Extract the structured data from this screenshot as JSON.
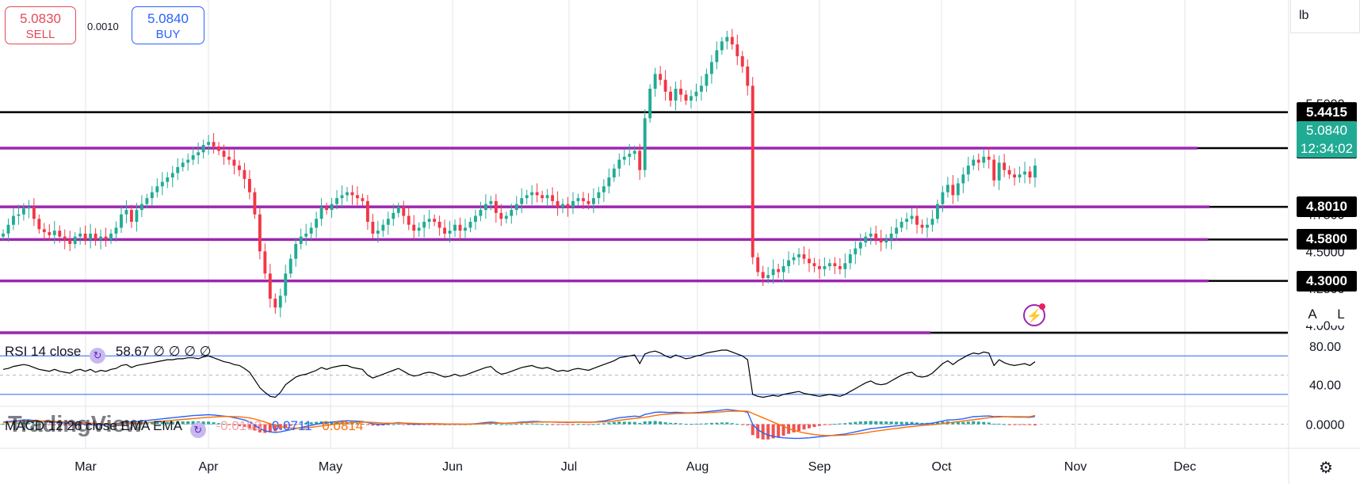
{
  "trade": {
    "sell_price": "5.0830",
    "sell_label": "SELL",
    "buy_price": "5.0840",
    "buy_label": "BUY",
    "spread": "0.0010"
  },
  "units_label": "lb",
  "buttons": {
    "auto": "A",
    "log": "L"
  },
  "logo": "TradingView",
  "icons": {
    "settings": "gear-icon",
    "flash": "lightning-icon",
    "indicator": "refresh-icon"
  },
  "chart_data": {
    "type": "candlestick",
    "x_axis": {
      "ticks": [
        "Mar",
        "Apr",
        "May",
        "Jun",
        "Jul",
        "Aug",
        "Sep",
        "Oct",
        "Nov",
        "Dec"
      ]
    },
    "y_axis": {
      "range": [
        3.95,
        6.2
      ],
      "ticks": [
        {
          "value": 5.5,
          "label": "5.5000"
        },
        {
          "value": 4.75,
          "label": "4.7500"
        },
        {
          "value": 4.5,
          "label": "4.5000"
        },
        {
          "value": 4.25,
          "label": "4.2500"
        },
        {
          "value": 4.0,
          "label": "4.0000"
        }
      ]
    },
    "current_price": "5.0840",
    "countdown": "12:34:02",
    "horizontal_levels": [
      {
        "value": 5.4415,
        "label": "5.4415",
        "color": "#000000"
      },
      {
        "value": 5.1985,
        "label": "5.1985",
        "color": "#9c27b0"
      },
      {
        "value": 4.801,
        "label": "4.8010",
        "color": "#9c27b0"
      },
      {
        "value": 4.58,
        "label": "4.5800",
        "color": "#9c27b0"
      },
      {
        "value": 4.3,
        "label": "4.3000",
        "color": "#9c27b0"
      },
      {
        "value": 3.95,
        "label": "",
        "color": "#9c27b0"
      }
    ],
    "colors": {
      "up": "#22ab94",
      "down": "#f23645",
      "rsi": "#000000",
      "macd": "#2962ff",
      "signal": "#ff6d00"
    },
    "candles_close": [
      4.62,
      4.68,
      4.74,
      4.75,
      4.79,
      4.8,
      4.72,
      4.65,
      4.63,
      4.61,
      4.64,
      4.6,
      4.58,
      4.55,
      4.6,
      4.62,
      4.58,
      4.62,
      4.58,
      4.6,
      4.58,
      4.62,
      4.66,
      4.75,
      4.78,
      4.7,
      4.78,
      4.82,
      4.86,
      4.9,
      4.94,
      4.97,
      5.0,
      5.03,
      5.07,
      5.1,
      5.12,
      5.15,
      5.17,
      5.22,
      5.24,
      5.21,
      5.18,
      5.14,
      5.12,
      5.08,
      5.05,
      4.99,
      4.9,
      4.75,
      4.5,
      4.35,
      4.18,
      4.12,
      4.2,
      4.35,
      4.45,
      4.55,
      4.6,
      4.62,
      4.66,
      4.72,
      4.8,
      4.78,
      4.82,
      4.86,
      4.88,
      4.9,
      4.88,
      4.86,
      4.84,
      4.7,
      4.62,
      4.64,
      4.68,
      4.72,
      4.76,
      4.8,
      4.74,
      4.68,
      4.64,
      4.66,
      4.7,
      4.72,
      4.7,
      4.66,
      4.62,
      4.64,
      4.68,
      4.64,
      4.66,
      4.7,
      4.74,
      4.78,
      4.82,
      4.84,
      4.76,
      4.72,
      4.74,
      4.78,
      4.82,
      4.86,
      4.88,
      4.9,
      4.88,
      4.86,
      4.88,
      4.84,
      4.8,
      4.82,
      4.8,
      4.84,
      4.86,
      4.84,
      4.82,
      4.86,
      4.9,
      4.94,
      5.0,
      5.06,
      5.12,
      5.14,
      5.16,
      5.18,
      5.05,
      5.4,
      5.6,
      5.7,
      5.66,
      5.58,
      5.52,
      5.6,
      5.56,
      5.52,
      5.55,
      5.58,
      5.62,
      5.7,
      5.78,
      5.86,
      5.92,
      5.95,
      5.9,
      5.82,
      5.75,
      5.62,
      4.46,
      4.36,
      4.32,
      4.34,
      4.38,
      4.36,
      4.4,
      4.44,
      4.46,
      4.48,
      4.45,
      4.42,
      4.4,
      4.38,
      4.4,
      4.42,
      4.4,
      4.38,
      4.42,
      4.48,
      4.52,
      4.56,
      4.6,
      4.62,
      4.58,
      4.56,
      4.58,
      4.62,
      4.66,
      4.7,
      4.72,
      4.74,
      4.68,
      4.66,
      4.68,
      4.72,
      4.82,
      4.9,
      4.95,
      4.88,
      4.96,
      5.02,
      5.08,
      5.12,
      5.1,
      5.14,
      5.12,
      4.98,
      5.1,
      5.05,
      5.02,
      5.0,
      5.02,
      5.04,
      5.0,
      5.08
    ],
    "rsi": {
      "label": "RSI 14 close",
      "value": "58.67",
      "na": [
        "∅",
        "∅",
        "∅",
        "∅"
      ],
      "ticks": [
        {
          "value": 80,
          "label": "80.00"
        },
        {
          "value": 40,
          "label": "40.00"
        }
      ],
      "bands": [
        70,
        50,
        30
      ],
      "range": [
        20,
        90
      ],
      "values": [
        56,
        57,
        59,
        60,
        61,
        60,
        58,
        56,
        55,
        54,
        56,
        54,
        53,
        52,
        55,
        56,
        54,
        56,
        53,
        55,
        54,
        56,
        57,
        60,
        61,
        58,
        60,
        61,
        62,
        63,
        64,
        65,
        66,
        66,
        67,
        67,
        68,
        68,
        67,
        69,
        70,
        68,
        66,
        64,
        63,
        61,
        60,
        57,
        53,
        45,
        37,
        32,
        28,
        27,
        32,
        40,
        44,
        48,
        50,
        51,
        53,
        55,
        58,
        56,
        58,
        59,
        60,
        60,
        58,
        57,
        56,
        50,
        47,
        49,
        51,
        53,
        55,
        57,
        54,
        51,
        49,
        50,
        52,
        53,
        52,
        50,
        48,
        49,
        51,
        49,
        50,
        52,
        54,
        56,
        58,
        59,
        54,
        51,
        52,
        54,
        56,
        58,
        59,
        60,
        58,
        57,
        58,
        56,
        54,
        55,
        54,
        56,
        57,
        56,
        55,
        57,
        59,
        61,
        63,
        65,
        68,
        69,
        70,
        71,
        62,
        72,
        74,
        75,
        73,
        70,
        68,
        71,
        69,
        67,
        68,
        70,
        71,
        73,
        74,
        75,
        76,
        76,
        74,
        72,
        70,
        66,
        30,
        28,
        27,
        28,
        29,
        28,
        30,
        31,
        32,
        33,
        31,
        30,
        29,
        28,
        29,
        30,
        29,
        28,
        30,
        33,
        36,
        39,
        42,
        44,
        41,
        40,
        41,
        44,
        47,
        50,
        52,
        53,
        49,
        48,
        49,
        52,
        57,
        62,
        65,
        61,
        65,
        68,
        71,
        73,
        72,
        74,
        73,
        60,
        66,
        63,
        61,
        60,
        61,
        62,
        60,
        64
      ]
    },
    "macd": {
      "label": "MACD 12 26 close EMA EMA",
      "value_macd": "0.0711",
      "value_signal": "0.0814",
      "value_hist": "-0.0103",
      "ticks": [
        {
          "value": 0,
          "label": "0.0000"
        }
      ],
      "range": [
        -0.2,
        0.15
      ],
      "macd": [
        0.02,
        0.025,
        0.03,
        0.035,
        0.04,
        0.04,
        0.035,
        0.03,
        0.025,
        0.02,
        0.02,
        0.015,
        0.01,
        0.005,
        0.005,
        0.005,
        0.0,
        0.0,
        -0.005,
        -0.005,
        -0.005,
        0.0,
        0.005,
        0.015,
        0.02,
        0.02,
        0.025,
        0.03,
        0.035,
        0.04,
        0.045,
        0.05,
        0.055,
        0.06,
        0.065,
        0.07,
        0.075,
        0.08,
        0.082,
        0.085,
        0.088,
        0.085,
        0.08,
        0.075,
        0.07,
        0.06,
        0.05,
        0.04,
        0.02,
        -0.01,
        -0.04,
        -0.06,
        -0.07,
        -0.075,
        -0.07,
        -0.06,
        -0.05,
        -0.04,
        -0.03,
        -0.02,
        -0.01,
        0.0,
        0.01,
        0.015,
        0.02,
        0.025,
        0.03,
        0.032,
        0.03,
        0.028,
        0.025,
        0.015,
        0.005,
        0.0,
        0.0,
        0.005,
        0.01,
        0.015,
        0.01,
        0.005,
        0.0,
        0.0,
        0.002,
        0.004,
        0.004,
        0.002,
        0.0,
        0.0,
        0.002,
        0.0,
        0.0,
        0.002,
        0.005,
        0.01,
        0.015,
        0.02,
        0.015,
        0.01,
        0.01,
        0.012,
        0.015,
        0.02,
        0.022,
        0.025,
        0.025,
        0.022,
        0.022,
        0.02,
        0.018,
        0.018,
        0.016,
        0.018,
        0.02,
        0.02,
        0.018,
        0.02,
        0.025,
        0.03,
        0.04,
        0.05,
        0.06,
        0.065,
        0.07,
        0.075,
        0.07,
        0.09,
        0.1,
        0.11,
        0.112,
        0.11,
        0.108,
        0.11,
        0.108,
        0.105,
        0.105,
        0.108,
        0.11,
        0.115,
        0.12,
        0.125,
        0.13,
        0.135,
        0.13,
        0.125,
        0.12,
        0.11,
        0.0,
        -0.05,
        -0.08,
        -0.1,
        -0.11,
        -0.12,
        -0.125,
        -0.128,
        -0.13,
        -0.13,
        -0.128,
        -0.125,
        -0.12,
        -0.115,
        -0.11,
        -0.105,
        -0.1,
        -0.095,
        -0.09,
        -0.08,
        -0.07,
        -0.06,
        -0.05,
        -0.04,
        -0.035,
        -0.03,
        -0.025,
        -0.02,
        -0.015,
        -0.01,
        -0.005,
        0.0,
        0.0,
        0.0,
        0.005,
        0.01,
        0.02,
        0.03,
        0.04,
        0.04,
        0.045,
        0.05,
        0.06,
        0.07,
        0.072,
        0.075,
        0.076,
        0.07,
        0.072,
        0.07,
        0.068,
        0.066,
        0.066,
        0.066,
        0.064,
        0.0711
      ],
      "signal": [
        0.015,
        0.018,
        0.02,
        0.022,
        0.025,
        0.028,
        0.03,
        0.03,
        0.03,
        0.028,
        0.027,
        0.025,
        0.022,
        0.02,
        0.017,
        0.015,
        0.012,
        0.01,
        0.008,
        0.005,
        0.003,
        0.002,
        0.002,
        0.004,
        0.006,
        0.008,
        0.01,
        0.013,
        0.016,
        0.02,
        0.024,
        0.028,
        0.032,
        0.036,
        0.04,
        0.044,
        0.048,
        0.052,
        0.056,
        0.06,
        0.064,
        0.067,
        0.07,
        0.071,
        0.071,
        0.07,
        0.068,
        0.064,
        0.058,
        0.048,
        0.035,
        0.02,
        0.005,
        -0.01,
        -0.022,
        -0.03,
        -0.035,
        -0.036,
        -0.035,
        -0.032,
        -0.028,
        -0.022,
        -0.016,
        -0.01,
        -0.004,
        0.002,
        0.008,
        0.012,
        0.016,
        0.018,
        0.02,
        0.019,
        0.017,
        0.014,
        0.011,
        0.01,
        0.01,
        0.011,
        0.011,
        0.01,
        0.008,
        0.006,
        0.005,
        0.005,
        0.005,
        0.004,
        0.003,
        0.002,
        0.002,
        0.002,
        0.001,
        0.001,
        0.002,
        0.004,
        0.006,
        0.009,
        0.01,
        0.01,
        0.01,
        0.011,
        0.012,
        0.014,
        0.016,
        0.018,
        0.02,
        0.02,
        0.021,
        0.021,
        0.02,
        0.02,
        0.019,
        0.019,
        0.019,
        0.019,
        0.019,
        0.019,
        0.02,
        0.022,
        0.025,
        0.03,
        0.036,
        0.042,
        0.048,
        0.054,
        0.058,
        0.064,
        0.072,
        0.08,
        0.087,
        0.092,
        0.095,
        0.098,
        0.1,
        0.101,
        0.102,
        0.103,
        0.104,
        0.106,
        0.108,
        0.111,
        0.114,
        0.118,
        0.12,
        0.121,
        0.121,
        0.12,
        0.1,
        0.08,
        0.06,
        0.04,
        0.02,
        0.0,
        -0.02,
        -0.04,
        -0.055,
        -0.068,
        -0.08,
        -0.088,
        -0.095,
        -0.1,
        -0.103,
        -0.104,
        -0.104,
        -0.102,
        -0.1,
        -0.096,
        -0.091,
        -0.085,
        -0.078,
        -0.07,
        -0.063,
        -0.056,
        -0.05,
        -0.044,
        -0.038,
        -0.032,
        -0.026,
        -0.021,
        -0.016,
        -0.012,
        -0.008,
        -0.004,
        0.0,
        0.006,
        0.012,
        0.018,
        0.024,
        0.03,
        0.036,
        0.042,
        0.048,
        0.054,
        0.06,
        0.065,
        0.067,
        0.069,
        0.07,
        0.07,
        0.07,
        0.069,
        0.069,
        0.0814
      ]
    }
  }
}
